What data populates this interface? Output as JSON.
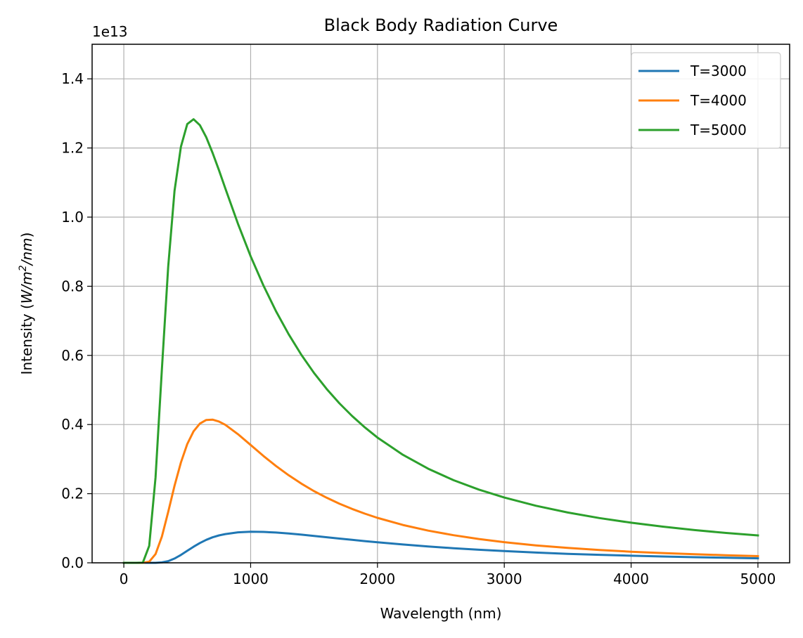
{
  "chart_data": {
    "type": "line",
    "title": "Black Body Radiation Curve",
    "xlabel": "Wavelength (nm)",
    "ylabel": "Intensity (W/m²/nm)",
    "ylabel_parts": {
      "prefix": "Intensity (",
      "math_a": "W/m",
      "sup": "2",
      "math_b": "/nm",
      "suffix": ")"
    },
    "y_offset_label": "1e13",
    "xlim": [
      -250,
      5250
    ],
    "ylim": [
      0,
      1.5
    ],
    "y_scale_factor": 10000000000000.0,
    "x_ticks": [
      0,
      1000,
      2000,
      3000,
      4000,
      5000
    ],
    "x_tick_labels": [
      "0",
      "1000",
      "2000",
      "3000",
      "4000",
      "5000"
    ],
    "y_ticks": [
      0.0,
      0.2,
      0.4,
      0.6,
      0.8,
      1.0,
      1.2,
      1.4
    ],
    "y_tick_labels": [
      "0.0",
      "0.2",
      "0.4",
      "0.6",
      "0.8",
      "1.0",
      "1.2",
      "1.4"
    ],
    "grid": true,
    "legend_position": "top-right",
    "x": [
      1,
      100,
      150,
      200,
      250,
      300,
      350,
      400,
      450,
      500,
      550,
      600,
      650,
      700,
      750,
      800,
      900,
      1000,
      1100,
      1200,
      1300,
      1400,
      1500,
      1600,
      1700,
      1800,
      1900,
      2000,
      2200,
      2400,
      2600,
      2800,
      3000,
      3250,
      3500,
      3750,
      4000,
      4250,
      4500,
      4750,
      5000
    ],
    "series": [
      {
        "name": "T=3000",
        "color": "#1f77b4",
        "values": [
          0.0,
          0.0,
          0.0,
          0.0,
          0.0001,
          0.0012,
          0.0049,
          0.0123,
          0.0228,
          0.0348,
          0.0466,
          0.0573,
          0.0664,
          0.0737,
          0.0793,
          0.0832,
          0.0882,
          0.0898,
          0.0895,
          0.0876,
          0.0848,
          0.0815,
          0.0778,
          0.074,
          0.0702,
          0.0665,
          0.0629,
          0.0594,
          0.053,
          0.0473,
          0.0422,
          0.0378,
          0.0339,
          0.0297,
          0.0261,
          0.0231,
          0.0205,
          0.0182,
          0.0163,
          0.0146,
          0.0131
        ]
      },
      {
        "name": "T=4000",
        "color": "#ff7f0e",
        "values": [
          0.0,
          0.0,
          0.0,
          0.0033,
          0.0252,
          0.0757,
          0.1472,
          0.2227,
          0.2903,
          0.3434,
          0.3805,
          0.4029,
          0.4132,
          0.4142,
          0.4088,
          0.3991,
          0.3721,
          0.3408,
          0.3094,
          0.2801,
          0.2533,
          0.229,
          0.2074,
          0.1882,
          0.171,
          0.1558,
          0.1422,
          0.1301,
          0.1096,
          0.0931,
          0.0798,
          0.0689,
          0.0598,
          0.0505,
          0.0431,
          0.0371,
          0.0322,
          0.0282,
          0.0248,
          0.0219,
          0.0195
        ]
      },
      {
        "name": "T=5000",
        "color": "#2ca02c",
        "values": [
          0.0,
          0.0,
          0.0005,
          0.0489,
          0.2469,
          0.559,
          0.8562,
          1.0761,
          1.2037,
          1.2691,
          1.2831,
          1.2659,
          1.2311,
          1.186,
          1.1357,
          1.0834,
          0.9809,
          0.8865,
          0.8029,
          0.7278,
          0.661,
          0.6017,
          0.5492,
          0.5027,
          0.4614,
          0.4247,
          0.3918,
          0.3624,
          0.3126,
          0.2722,
          0.2391,
          0.2118,
          0.1889,
          0.1651,
          0.1456,
          0.1295,
          0.116,
          0.1046,
          0.0948,
          0.0864,
          0.0792
        ]
      }
    ]
  }
}
